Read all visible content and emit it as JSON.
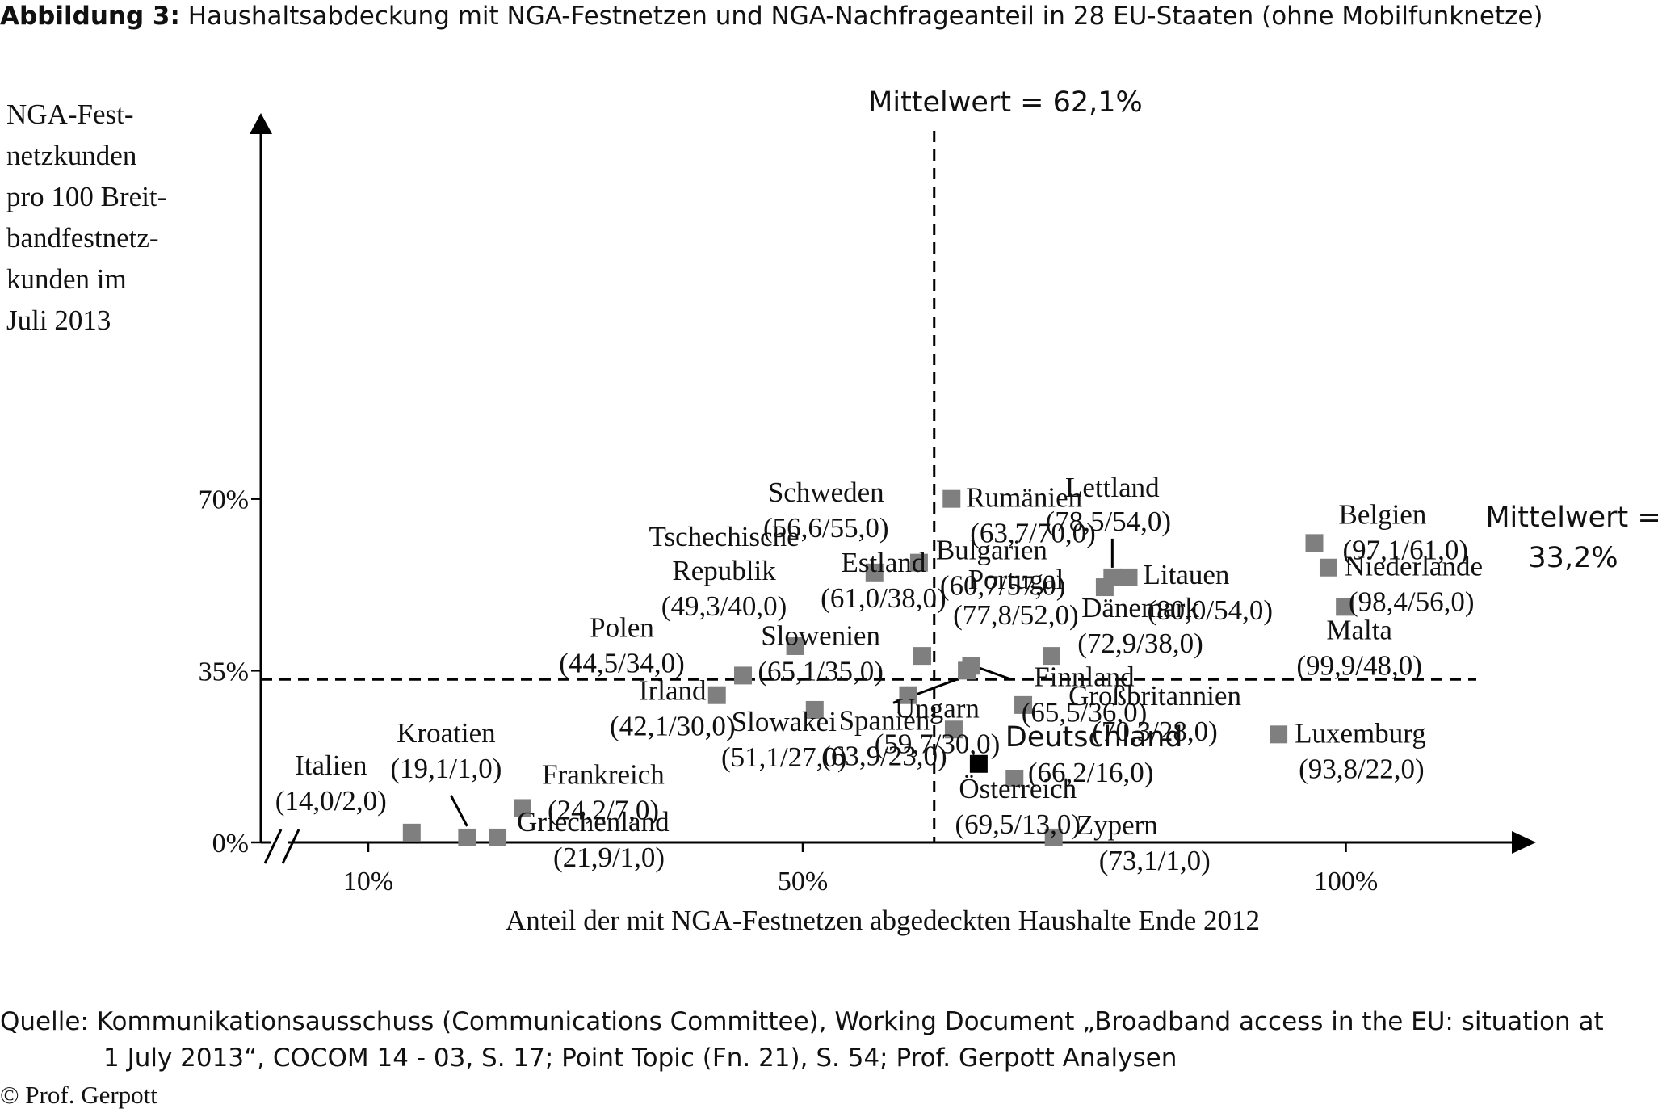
{
  "figure": {
    "title_prefix": "Abbildung 3:",
    "title_text": "Haushaltsabdeckung mit NGA-Festnetzen und NGA-Nachfrageanteil in 28 EU-Staaten (ohne Mobilfunknetze)"
  },
  "source": {
    "line1": "Quelle: Kommunikationsausschuss (Communications Committee), Working Document „Broadband access in the EU: situation at",
    "line2": "1 July 2013“, COCOM 14 - 03, S. 17; Point Topic (Fn. 21), S. 54; Prof. Gerpott Analysen",
    "copyright": "© Prof. Gerpott"
  },
  "chart_data": {
    "type": "scatter",
    "xlabel": "Anteil der mit NGA-Festnetzen abgedeckten Haushalte Ende 2012",
    "ylabel_lines": [
      "NGA-Fest-",
      "netzkunden",
      "pro 100 Breit-",
      "bandfestnetz-",
      "kunden im",
      "Juli 2013"
    ],
    "x_ticks": [
      {
        "value": 10,
        "label": "10%"
      },
      {
        "value": 50,
        "label": "50%"
      },
      {
        "value": 100,
        "label": "100%"
      }
    ],
    "y_ticks": [
      {
        "value": 0,
        "label": "0%"
      },
      {
        "value": 35,
        "label": "35%"
      },
      {
        "value": 70,
        "label": "70%"
      }
    ],
    "xlim": [
      2,
      106
    ],
    "ylim": [
      0,
      75
    ],
    "x_axis_break": true,
    "mean_x": {
      "value": 62.1,
      "label": "Mittelwert = 62,1%"
    },
    "mean_y": {
      "value": 33.2,
      "label_lines": [
        "Mittelwert =",
        "33,2%"
      ]
    },
    "colors": {
      "point": "#7f7f7f",
      "highlight": "#000000"
    },
    "points": [
      {
        "name": "Italien",
        "label": "(14,0/2,0)",
        "x": 14.0,
        "y": 2.0
      },
      {
        "name": "Kroatien",
        "label": "(19,1/1,0)",
        "x": 19.1,
        "y": 1.0
      },
      {
        "name": "Griechenland",
        "label": "(21,9/1,0)",
        "x": 21.9,
        "y": 1.0
      },
      {
        "name": "Frankreich",
        "label": "(24,2/7,0)",
        "x": 24.2,
        "y": 7.0
      },
      {
        "name": "Irland",
        "label": "(42,1/30,0)",
        "x": 42.1,
        "y": 30.0
      },
      {
        "name": "Polen",
        "label": "(44,5/34,0)",
        "x": 44.5,
        "y": 34.0
      },
      {
        "name": "Tschechische Republik",
        "label": "(49,3/40,0)",
        "x": 49.3,
        "y": 40.0
      },
      {
        "name": "Slowakei",
        "label": "(51,1/27,0)",
        "x": 51.1,
        "y": 27.0
      },
      {
        "name": "Schweden",
        "label": "(56,6/55,0)",
        "x": 56.6,
        "y": 55.0
      },
      {
        "name": "Ungarn",
        "label": "(59,7/30,0)",
        "x": 59.7,
        "y": 30.0
      },
      {
        "name": "Bulgarien",
        "label": "(60,7/57,0)",
        "x": 60.7,
        "y": 57.0
      },
      {
        "name": "Estland",
        "label": "(61,0/38,0)",
        "x": 61.0,
        "y": 38.0
      },
      {
        "name": "Rumänien",
        "label": "(63,7/70,0)",
        "x": 63.7,
        "y": 70.0
      },
      {
        "name": "Spanien",
        "label": "(63,9/23,0)",
        "x": 63.9,
        "y": 23.0
      },
      {
        "name": "Slowenien",
        "label": "(65,1/35,0)",
        "x": 65.1,
        "y": 35.0
      },
      {
        "name": "Finnland",
        "label": "(65,5/36,0)",
        "x": 65.5,
        "y": 36.0
      },
      {
        "name": "Deutschland",
        "label": "(66,2/16,0)",
        "x": 66.2,
        "y": 16.0,
        "highlight": true
      },
      {
        "name": "Österreich",
        "label": "(69,5/13,0)",
        "x": 69.5,
        "y": 13.0
      },
      {
        "name": "Großbritannien",
        "label": "(70,3/28,0)",
        "x": 70.3,
        "y": 28.0
      },
      {
        "name": "Dänemark",
        "label": "(72,9/38,0)",
        "x": 72.9,
        "y": 38.0
      },
      {
        "name": "Zypern",
        "label": "(73,1/1,0)",
        "x": 73.1,
        "y": 1.0
      },
      {
        "name": "Portugal",
        "label": "(77,8/52,0)",
        "x": 77.8,
        "y": 52.0
      },
      {
        "name": "Lettland",
        "label": "(78,5/54,0)",
        "x": 78.5,
        "y": 54.0
      },
      {
        "name": "Litauen",
        "label": "(80,0/54,0)",
        "x": 80.0,
        "y": 54.0
      },
      {
        "name": "Luxemburg",
        "label": "(93,8/22,0)",
        "x": 93.8,
        "y": 22.0
      },
      {
        "name": "Belgien",
        "label": "(97,1/61,0)",
        "x": 97.1,
        "y": 61.0
      },
      {
        "name": "Niederlande",
        "label": "(98,4/56,0)",
        "x": 98.4,
        "y": 56.0
      },
      {
        "name": "Malta",
        "label": "(99,9/48,0)",
        "x": 99.9,
        "y": 48.0
      }
    ]
  }
}
